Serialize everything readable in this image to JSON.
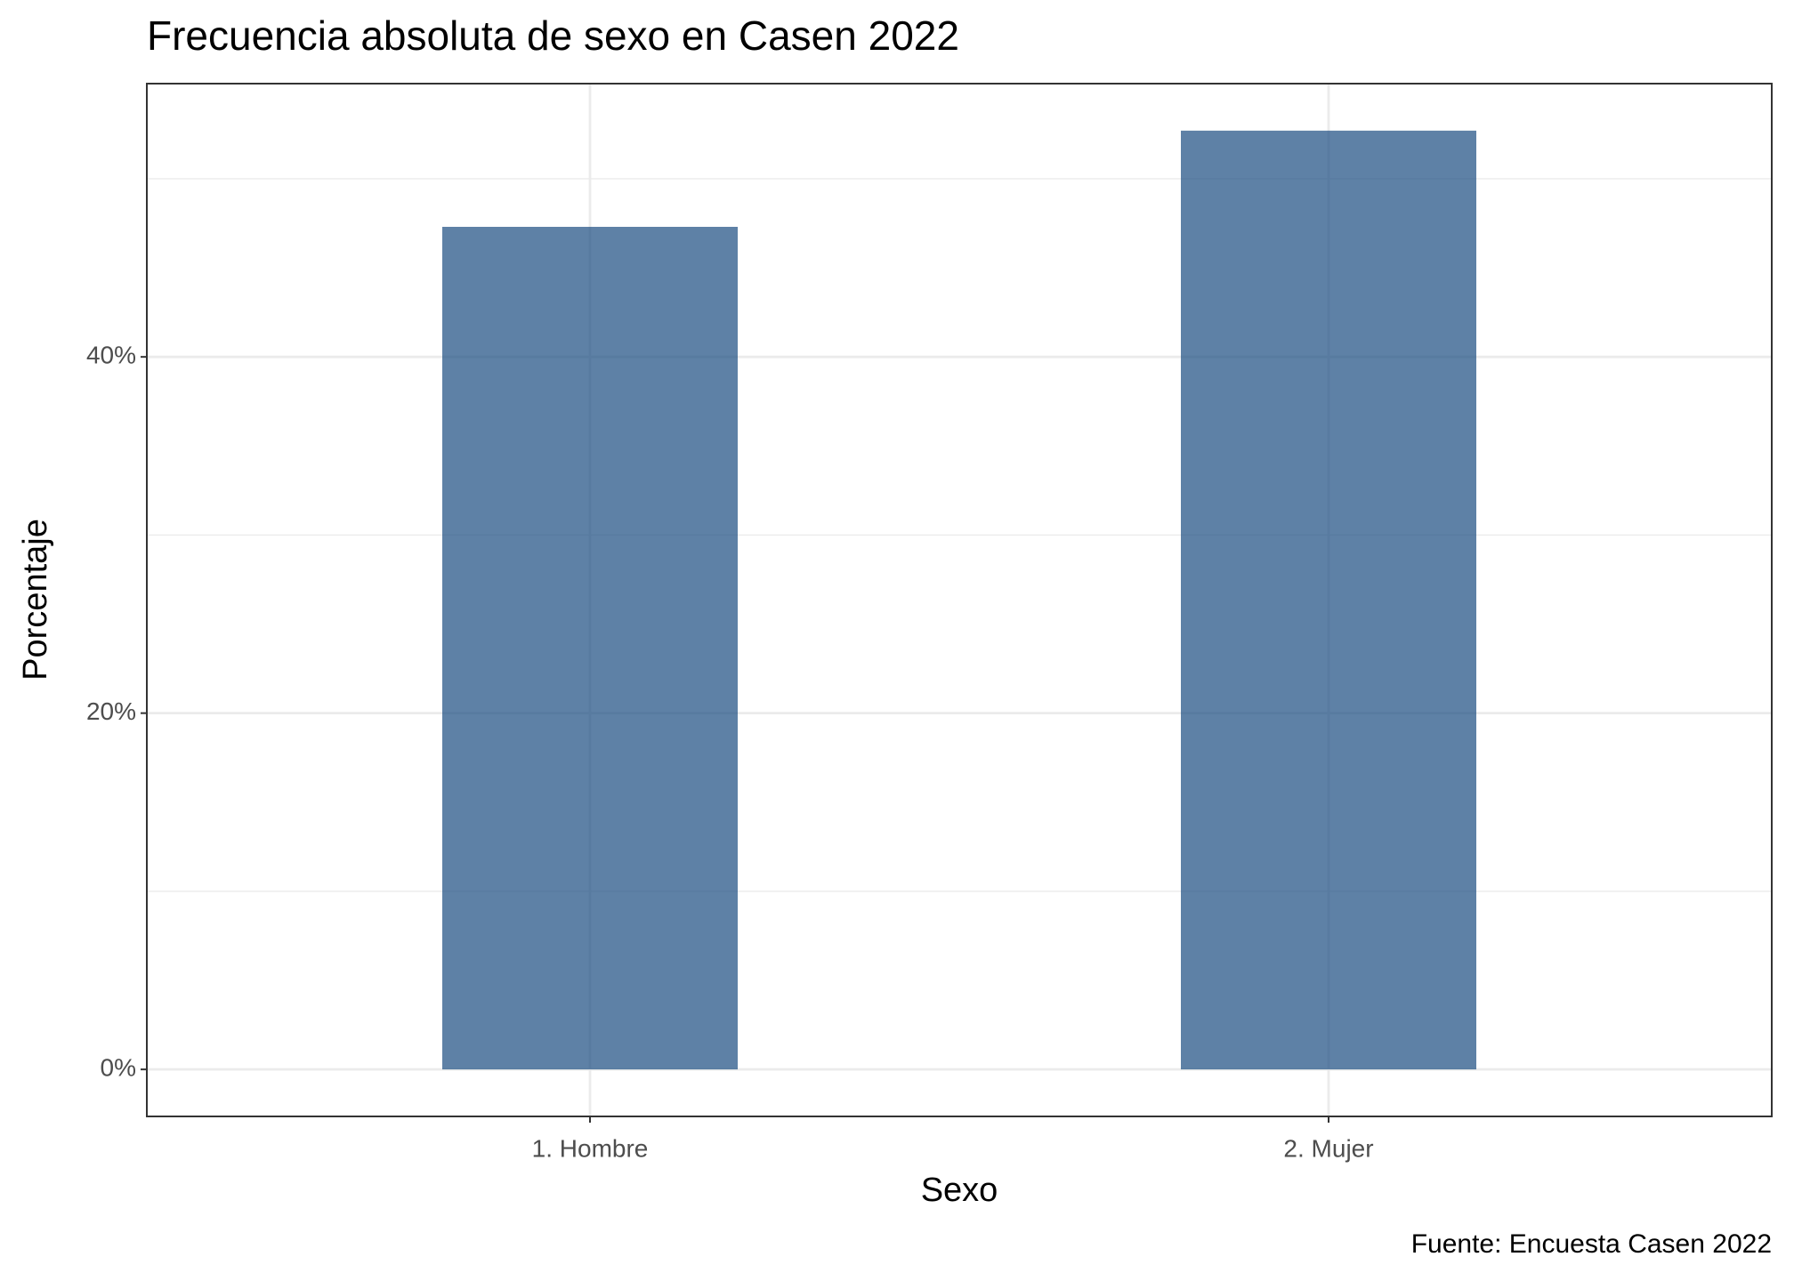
{
  "chart_data": {
    "type": "bar",
    "title": "Frecuencia absoluta de sexo en Casen 2022",
    "x_label": "Sexo",
    "y_label": "Porcentaje",
    "caption": "Fuente: Encuesta Casen 2022",
    "categories": [
      "1. Hombre",
      "2. Mujer"
    ],
    "values": [
      47.3,
      52.7
    ],
    "color": "#194b80",
    "bar_alpha": 0.7,
    "ylim": [
      -2.64,
      55.34
    ],
    "yticks": [
      {
        "value": 0,
        "label": "0%"
      },
      {
        "value": 20,
        "label": "20%"
      },
      {
        "value": 40,
        "label": "40%"
      }
    ],
    "y_minor_ticks": [
      10,
      30,
      50
    ],
    "grid": true
  }
}
